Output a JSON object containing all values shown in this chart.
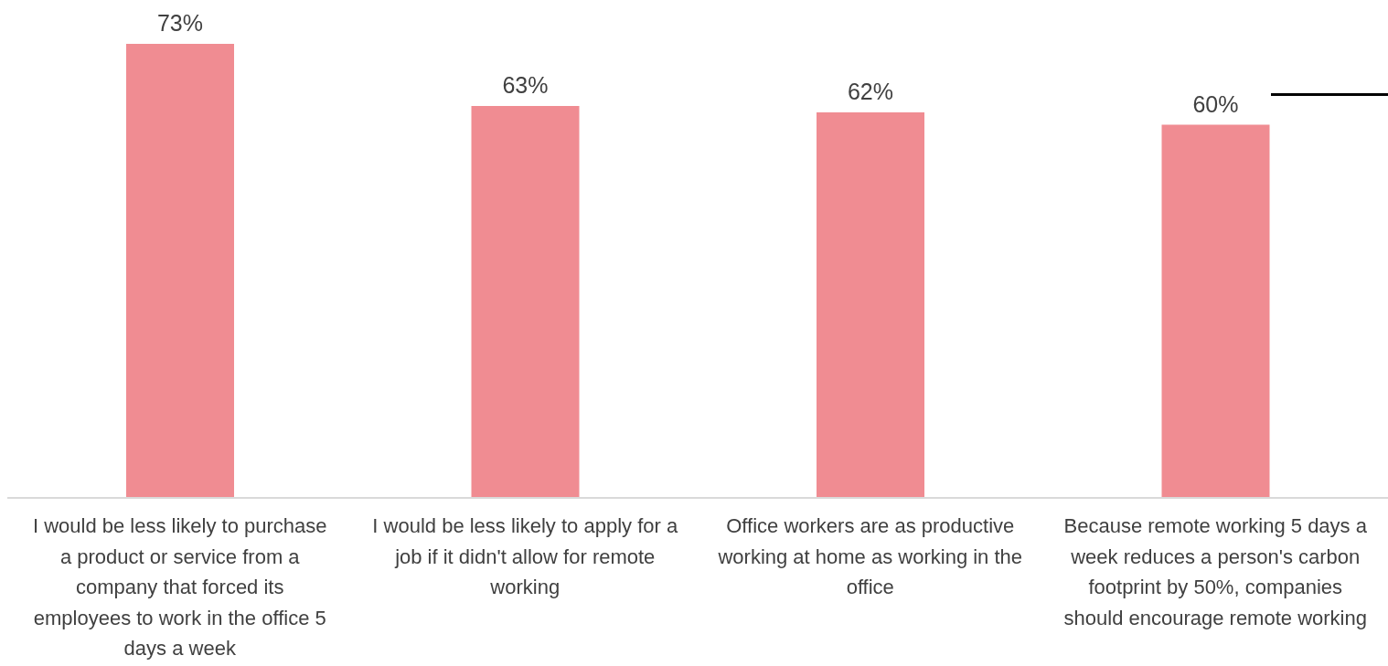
{
  "chart_data": {
    "type": "bar",
    "categories": [
      "I would be less likely to purchase a product or service from a company that forced its employees to work in the office 5 days a week",
      "I would be less likely to apply for a job if it didn't allow for remote working",
      "Office workers are as productive working at home as working in the office",
      "Because remote working 5 days a week reduces a person's carbon footprint by 50%, companies should encourage remote working"
    ],
    "values": [
      73,
      63,
      62,
      60
    ],
    "value_labels": [
      "73%",
      "63%",
      "62%",
      "60%"
    ],
    "color": "#f08c92"
  }
}
